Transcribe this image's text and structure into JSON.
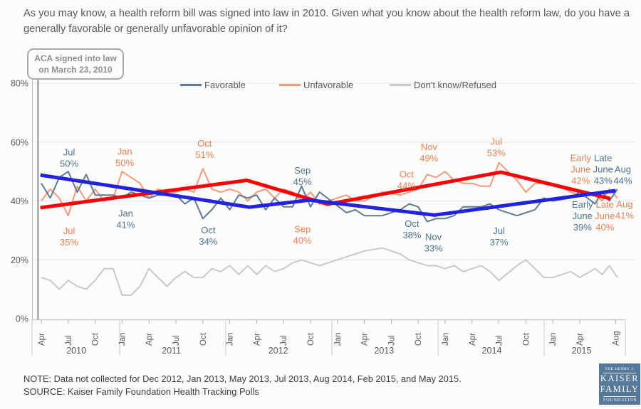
{
  "title": "As you may know, a health reform bill was signed into law in 2010. Given what you know about the health reform law, do you have a generally favorable or generally unfavorable opinion of it?",
  "annotation": {
    "line1": "ACA signed into law",
    "line2": "on March 23, 2010"
  },
  "legend": [
    {
      "label": "Favorable",
      "color": "#5d7b94"
    },
    {
      "label": "Unfavorable",
      "color": "#f29b7c"
    },
    {
      "label": "Don't know/Refused",
      "color": "#c9c9c9"
    }
  ],
  "note": "NOTE: Data not collected for Dec 2012, Jan 2013, May 2013, Jul 2013, Aug 2014, Feb 2015, and May 2015.",
  "source": "SOURCE: Kaiser Family Foundation Health Tracking Polls",
  "logo": {
    "line1": "THE HENRY J.",
    "line2": "KAISER",
    "line3": "FAMILY",
    "line4": "FOUNDATION",
    "bg": "#567899"
  },
  "chart_data": {
    "type": "line",
    "title": "Favorability of the health reform law (ACA), Kaiser Health Tracking Polls",
    "x_unit": "month index, 0 = Apr 2010, 64 = Aug 2015 (2015 includes Early/Late June polls)",
    "ylim": [
      0,
      80
    ],
    "grid": "horizontal",
    "legend_position": "top",
    "y_axis": {
      "tick_labels": [
        "80%",
        "60%",
        "40%",
        "20%",
        "0%"
      ],
      "tick_values": [
        80,
        60,
        40,
        20,
        0
      ]
    },
    "x_axis": {
      "ticks": [
        {
          "label": "Apr",
          "m": 0
        },
        {
          "label": "Jul",
          "m": 3
        },
        {
          "label": "Oct",
          "m": 6
        },
        {
          "label": "Jan",
          "m": 9
        },
        {
          "label": "Apr",
          "m": 12
        },
        {
          "label": "Jul",
          "m": 15
        },
        {
          "label": "Oct",
          "m": 18
        },
        {
          "label": "Jan",
          "m": 21
        },
        {
          "label": "Apr",
          "m": 24
        },
        {
          "label": "Jul",
          "m": 27
        },
        {
          "label": "Oct",
          "m": 30
        },
        {
          "label": "Jan",
          "m": 33
        },
        {
          "label": "Apr",
          "m": 36
        },
        {
          "label": "Jul",
          "m": 39
        },
        {
          "label": "Oct",
          "m": 42
        },
        {
          "label": "Jan",
          "m": 45
        },
        {
          "label": "Apr",
          "m": 48
        },
        {
          "label": "Jul",
          "m": 51
        },
        {
          "label": "Oct",
          "m": 54
        },
        {
          "label": "Jan",
          "m": 57
        },
        {
          "label": "Apr",
          "m": 60
        },
        {
          "label": "Aug",
          "m": 64
        }
      ],
      "years": [
        {
          "label": "2010",
          "center_m": 3.9
        },
        {
          "label": "2011",
          "center_m": 14.5
        },
        {
          "label": "2012",
          "center_m": 26.4
        },
        {
          "label": "2013",
          "center_m": 38.2
        },
        {
          "label": "2014",
          "center_m": 50.2
        },
        {
          "label": "2015",
          "center_m": 60.2
        }
      ],
      "divider_months": [
        -1.03,
        8.73,
        20.55,
        32.38,
        44.21,
        56.03,
        65.08
      ]
    },
    "months": [
      0,
      1,
      2,
      3,
      4,
      5,
      6,
      7,
      8,
      9,
      10,
      11,
      12,
      13,
      14,
      15,
      16,
      17,
      18,
      19,
      20,
      21,
      22,
      23,
      24,
      25,
      26,
      27,
      28,
      29,
      30,
      31,
      34,
      35,
      36,
      38,
      40,
      41,
      42,
      43,
      44,
      45,
      46,
      47,
      48,
      49,
      50,
      51,
      53,
      54,
      55,
      56,
      57,
      59,
      60,
      61.7,
      62.5,
      63.3,
      64.2
    ],
    "series": [
      {
        "name": "Favorable",
        "color": "#5d7b94",
        "width": 2,
        "values": [
          46,
          41,
          48,
          50,
          43,
          49,
          42,
          42,
          42,
          41,
          43,
          42,
          41,
          42,
          42,
          42,
          39,
          41,
          34,
          37,
          41,
          37,
          42,
          41,
          42,
          37,
          41,
          38,
          38,
          45,
          38,
          43,
          36,
          37,
          35,
          35,
          37,
          39,
          38,
          33,
          34,
          34,
          35,
          38,
          38,
          38,
          39,
          37,
          35,
          36,
          37,
          41,
          40,
          41,
          43,
          39,
          43,
          40,
          44
        ]
      },
      {
        "name": "Unfavorable",
        "color": "#f29b7c",
        "width": 2,
        "values": [
          40,
          44,
          41,
          35,
          45,
          40,
          44,
          40,
          41,
          50,
          48,
          46,
          41,
          44,
          43,
          43,
          44,
          43,
          51,
          44,
          43,
          44,
          43,
          40,
          43,
          44,
          41,
          44,
          43,
          40,
          43,
          39,
          42,
          40,
          40,
          43,
          42,
          43,
          44,
          49,
          48,
          50,
          47,
          46,
          46,
          45,
          45,
          53,
          47,
          43,
          46,
          46,
          46,
          43,
          42,
          42,
          40,
          44,
          41
        ]
      },
      {
        "name": "Don't know/Refused",
        "color": "#c9c9c9",
        "width": 2,
        "values": [
          14,
          13,
          10,
          13,
          11,
          10,
          13,
          17,
          17,
          8,
          8,
          11,
          17,
          14,
          11,
          14,
          16,
          14,
          14,
          17,
          16,
          18,
          15,
          18,
          15,
          18,
          16,
          17,
          19,
          20,
          19,
          18,
          21,
          22,
          23,
          24,
          22,
          20,
          19,
          18,
          18,
          17,
          18,
          16,
          17,
          18,
          16,
          13,
          18,
          20,
          17,
          14,
          14,
          16,
          14,
          17,
          15,
          18,
          14
        ]
      }
    ],
    "trend_lines": [
      {
        "name": "Unfavorable trend",
        "color": "#f50408",
        "width": 5,
        "points": [
          [
            -0.1,
            37.7
          ],
          [
            22.9,
            47.0
          ],
          [
            31.9,
            38.9
          ],
          [
            51.2,
            49.8
          ],
          [
            63.4,
            40.8
          ]
        ]
      },
      {
        "name": "Favorable trend",
        "color": "#2222e0",
        "width": 5,
        "points": [
          [
            -0.1,
            48.8
          ],
          [
            23.2,
            37.9
          ],
          [
            29.9,
            40.3
          ],
          [
            43.8,
            35.2
          ],
          [
            64.0,
            43.5
          ]
        ]
      }
    ],
    "callouts": [
      {
        "series": "Favorable",
        "color": "#4b7392",
        "lines": [
          "Jul",
          "50%"
        ],
        "m": 3.1,
        "pct": 54.6
      },
      {
        "series": "Favorable",
        "color": "#4b7392",
        "lines": [
          "Jan",
          "41%"
        ],
        "m": 9.4,
        "pct": 33.8
      },
      {
        "series": "Favorable",
        "color": "#4b7392",
        "lines": [
          "Oct",
          "34%"
        ],
        "m": 18.6,
        "pct": 28.2
      },
      {
        "series": "Favorable",
        "color": "#4b7392",
        "lines": [
          "Sep",
          "45%"
        ],
        "m": 29.1,
        "pct": 48.4
      },
      {
        "series": "Favorable",
        "color": "#4b7392",
        "lines": [
          "Oct",
          "38%"
        ],
        "m": 41.3,
        "pct": 30.3
      },
      {
        "series": "Favorable",
        "color": "#4b7392",
        "lines": [
          "Nov",
          "33%"
        ],
        "m": 43.7,
        "pct": 25.9
      },
      {
        "series": "Favorable",
        "color": "#4b7392",
        "lines": [
          "Jul",
          "37%"
        ],
        "m": 51.0,
        "pct": 27.9
      },
      {
        "series": "Favorable",
        "color": "#4b7392",
        "lines": [
          "Late",
          "June",
          "43%"
        ],
        "m": 62.6,
        "pct": 50.7
      },
      {
        "series": "Favorable",
        "color": "#4b7392",
        "lines": [
          "Aug",
          "44%"
        ],
        "m": 64.8,
        "pct": 48.8
      },
      {
        "series": "Favorable",
        "color": "#4b7392",
        "lines": [
          "Early",
          "June",
          "39%"
        ],
        "m": 60.3,
        "pct": 34.9
      },
      {
        "series": "Unfavorable",
        "color": "#e58055",
        "lines": [
          "Jul",
          "35%"
        ],
        "m": 3.1,
        "pct": 27.9
      },
      {
        "series": "Unfavorable",
        "color": "#e58055",
        "lines": [
          "Jan",
          "50%"
        ],
        "m": 9.3,
        "pct": 54.9
      },
      {
        "series": "Unfavorable",
        "color": "#e58055",
        "lines": [
          "Oct",
          "51%"
        ],
        "m": 18.2,
        "pct": 57.7
      },
      {
        "series": "Unfavorable",
        "color": "#e58055",
        "lines": [
          "Sep",
          "40%"
        ],
        "m": 29.1,
        "pct": 28.5
      },
      {
        "series": "Unfavorable",
        "color": "#e58055",
        "lines": [
          "Oct",
          "44%"
        ],
        "m": 40.7,
        "pct": 47.1
      },
      {
        "series": "Unfavorable",
        "color": "#e58055",
        "lines": [
          "Nov",
          "49%"
        ],
        "m": 43.2,
        "pct": 56.4
      },
      {
        "series": "Unfavorable",
        "color": "#e58055",
        "lines": [
          "Jul",
          "53%"
        ],
        "m": 50.7,
        "pct": 58.2
      },
      {
        "series": "Unfavorable",
        "color": "#e58055",
        "lines": [
          "Early",
          "June",
          "42%"
        ],
        "m": 60.1,
        "pct": 50.7
      },
      {
        "series": "Unfavorable",
        "color": "#e58055",
        "lines": [
          "Late",
          "June",
          "40%"
        ],
        "m": 62.8,
        "pct": 34.9
      },
      {
        "series": "Unfavorable",
        "color": "#e58055",
        "lines": [
          "Aug",
          "41%"
        ],
        "m": 65.0,
        "pct": 37.0
      }
    ]
  }
}
